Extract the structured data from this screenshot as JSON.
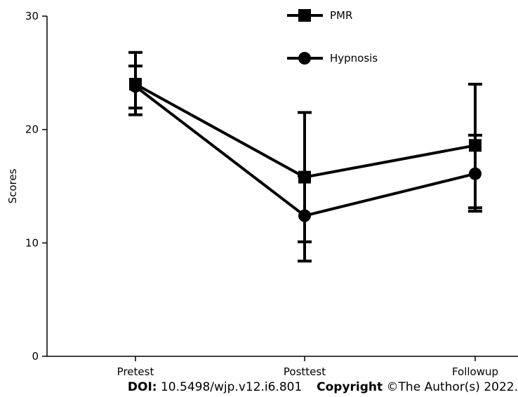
{
  "chart_data": {
    "type": "line",
    "title": "",
    "xlabel": "",
    "ylabel": "Scores",
    "categories": [
      "Pretest",
      "Posttest",
      "Followup"
    ],
    "ylim": [
      0,
      30
    ],
    "yticks": [
      0,
      10,
      20,
      30
    ],
    "grid": false,
    "legend_position": "top-right",
    "series": [
      {
        "name": "PMR",
        "marker": "square",
        "values": [
          24.0,
          15.8,
          18.6
        ],
        "error_low": [
          21.3,
          10.1,
          13.1
        ],
        "error_high": [
          26.8,
          21.5,
          24.0
        ]
      },
      {
        "name": "Hypnosis",
        "marker": "circle",
        "values": [
          23.8,
          12.4,
          16.1
        ],
        "error_low": [
          21.9,
          8.4,
          12.8
        ],
        "error_high": [
          25.6,
          15.9,
          19.5
        ]
      }
    ],
    "colors": {
      "line": "#000000",
      "axis": "#000000"
    }
  },
  "footer": {
    "doi_label": "DOI:",
    "doi_value": "10.5498/wjp.v12.i6.801",
    "copyright_label": "Copyright",
    "copyright_value": "©The Author(s) 2022."
  }
}
